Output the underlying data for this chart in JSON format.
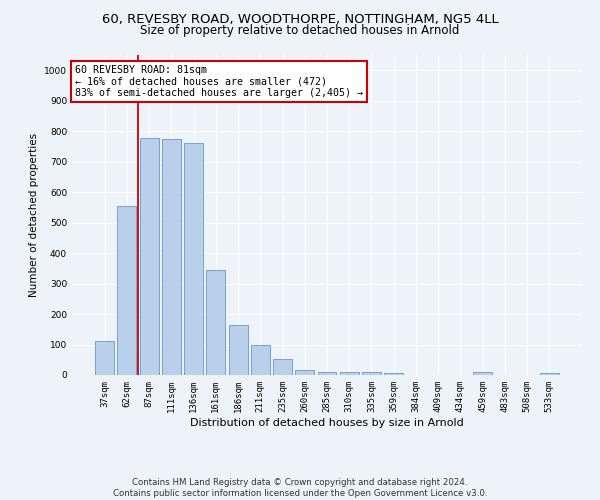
{
  "title": "60, REVESBY ROAD, WOODTHORPE, NOTTINGHAM, NG5 4LL",
  "subtitle": "Size of property relative to detached houses in Arnold",
  "xlabel": "Distribution of detached houses by size in Arnold",
  "ylabel": "Number of detached properties",
  "categories": [
    "37sqm",
    "62sqm",
    "87sqm",
    "111sqm",
    "136sqm",
    "161sqm",
    "186sqm",
    "211sqm",
    "235sqm",
    "260sqm",
    "285sqm",
    "310sqm",
    "335sqm",
    "359sqm",
    "384sqm",
    "409sqm",
    "434sqm",
    "459sqm",
    "483sqm",
    "508sqm",
    "533sqm"
  ],
  "values": [
    113,
    555,
    778,
    775,
    762,
    345,
    163,
    97,
    53,
    17,
    11,
    10,
    10,
    7,
    0,
    0,
    0,
    10,
    0,
    0,
    8
  ],
  "bar_color": "#b8d0ea",
  "bar_edge_color": "#6699cc",
  "vline_color": "#cc0000",
  "annotation_text": "60 REVESBY ROAD: 81sqm\n← 16% of detached houses are smaller (472)\n83% of semi-detached houses are larger (2,405) →",
  "annotation_box_color": "#ffffff",
  "annotation_box_edge": "#cc0000",
  "bg_color": "#eef2f9",
  "grid_color": "#ffffff",
  "footer_line1": "Contains HM Land Registry data © Crown copyright and database right 2024.",
  "footer_line2": "Contains public sector information licensed under the Open Government Licence v3.0.",
  "ylim": [
    0,
    1050
  ],
  "title_fontsize": 9.5,
  "subtitle_fontsize": 8.5
}
